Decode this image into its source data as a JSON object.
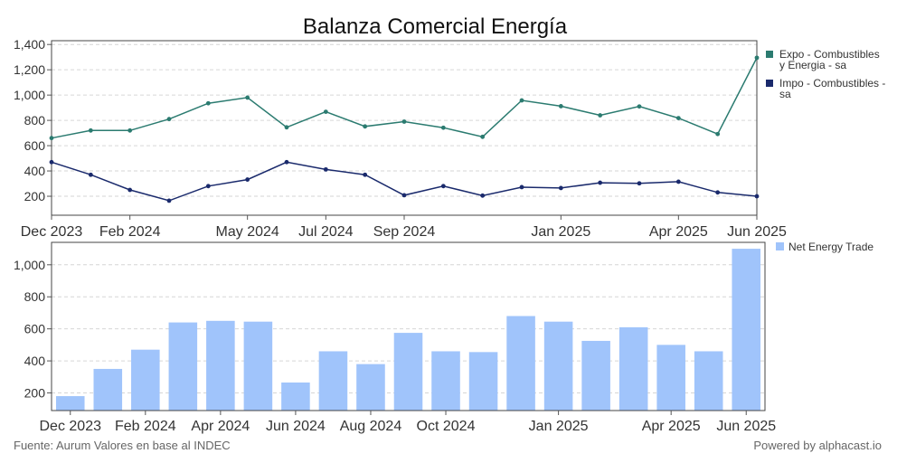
{
  "chart_data": [
    {
      "type": "line",
      "title": "Balanza Comercial Energía",
      "x": [
        "2023-12",
        "2024-01",
        "2024-02",
        "2024-03",
        "2024-04",
        "2024-05",
        "2024-06",
        "2024-07",
        "2024-08",
        "2024-09",
        "2024-10",
        "2024-11",
        "2024-12",
        "2025-01",
        "2025-02",
        "2025-03",
        "2025-04",
        "2025-05",
        "2025-06"
      ],
      "tick_labels": [
        {
          "x": "2023-12",
          "label": "Dec 2023"
        },
        {
          "x": "2024-02",
          "label": "Feb 2024"
        },
        {
          "x": "2024-05",
          "label": "May 2024"
        },
        {
          "x": "2024-07",
          "label": "Jul 2024"
        },
        {
          "x": "2024-09",
          "label": "Sep 2024"
        },
        {
          "x": "2025-01",
          "label": "Jan 2025"
        },
        {
          "x": "2025-04",
          "label": "Apr 2025"
        },
        {
          "x": "2025-06",
          "label": "Jun 2025"
        }
      ],
      "y_ticks": [
        200,
        400,
        600,
        800,
        1000,
        1200,
        1400
      ],
      "y_tick_labels": [
        "200",
        "400",
        "600",
        "800",
        "1,000",
        "1,200",
        "1,400"
      ],
      "ylim": [
        50,
        1430
      ],
      "grid": true,
      "legend_position": "right",
      "series": [
        {
          "name": "Expo - Combustibles y Energia - sa",
          "legend_lines": [
            "Expo - Combustibles",
            "y Energia - sa"
          ],
          "color": "#2b7b70",
          "values": [
            660,
            720,
            720,
            810,
            935,
            980,
            745,
            868,
            752,
            790,
            742,
            670,
            958,
            912,
            840,
            910,
            818,
            692,
            1295
          ]
        },
        {
          "name": "Impo - Combustibles - sa",
          "legend_lines": [
            "Impo - Combustibles -",
            "sa"
          ],
          "color": "#1a2a6c",
          "values": [
            470,
            370,
            250,
            165,
            280,
            332,
            470,
            412,
            370,
            208,
            280,
            205,
            272,
            265,
            307,
            302,
            315,
            230,
            200
          ]
        }
      ]
    },
    {
      "type": "bar",
      "categories": [
        "2023-12",
        "2024-01",
        "2024-02",
        "2024-03",
        "2024-04",
        "2024-05",
        "2024-06",
        "2024-07",
        "2024-08",
        "2024-09",
        "2024-10",
        "2024-11",
        "2024-12",
        "2025-01",
        "2025-02",
        "2025-03",
        "2025-04",
        "2025-05",
        "2025-06"
      ],
      "tick_labels": [
        {
          "x": "2023-12",
          "label": "Dec 2023"
        },
        {
          "x": "2024-02",
          "label": "Feb 2024"
        },
        {
          "x": "2024-04",
          "label": "Apr 2024"
        },
        {
          "x": "2024-06",
          "label": "Jun 2024"
        },
        {
          "x": "2024-08",
          "label": "Aug 2024"
        },
        {
          "x": "2024-10",
          "label": "Oct 2024"
        },
        {
          "x": "2025-01",
          "label": "Jan 2025"
        },
        {
          "x": "2025-04",
          "label": "Apr 2025"
        },
        {
          "x": "2025-06",
          "label": "Jun 2025"
        }
      ],
      "y_ticks": [
        200,
        400,
        600,
        800,
        1000
      ],
      "y_tick_labels": [
        "200",
        "400",
        "600",
        "800",
        "1,000"
      ],
      "ylim": [
        90,
        1140
      ],
      "grid": true,
      "legend_position": "right",
      "series": [
        {
          "name": "Net Energy Trade",
          "color": "#a0c4fb",
          "values": [
            180,
            350,
            470,
            640,
            650,
            645,
            265,
            460,
            380,
            575,
            460,
            455,
            680,
            645,
            525,
            610,
            500,
            460,
            1100
          ]
        }
      ]
    }
  ],
  "footer": {
    "source": "Fuente: Aurum Valores en base al INDEC",
    "powered_by": "Powered by alphacast.io"
  }
}
